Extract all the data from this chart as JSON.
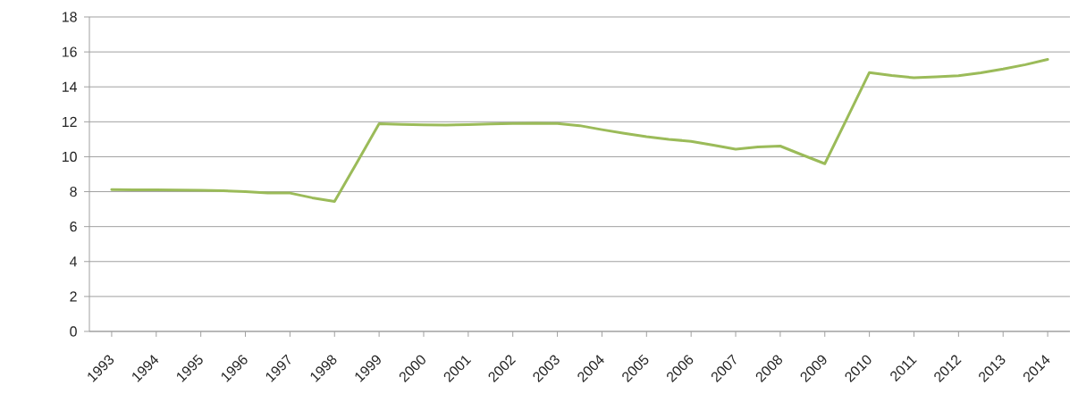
{
  "chart_data": {
    "type": "line",
    "x": [
      1993,
      1993.5,
      1994,
      1994.5,
      1995,
      1995.5,
      1996,
      1996.5,
      1997,
      1997.5,
      1998,
      1998.5,
      1999,
      1999.5,
      2000,
      2000.5,
      2001,
      2001.5,
      2002,
      2002.5,
      2003,
      2003.5,
      2004,
      2004.5,
      2005,
      2005.5,
      2006,
      2006.5,
      2007,
      2007.5,
      2008,
      2008.5,
      2009,
      2009.5,
      2010,
      2010.5,
      2011,
      2011.5,
      2012,
      2012.5,
      2013,
      2013.5,
      2014
    ],
    "values": [
      8.12,
      8.1,
      8.1,
      8.09,
      8.08,
      8.05,
      8.0,
      7.92,
      7.92,
      7.65,
      7.44,
      9.65,
      11.89,
      11.85,
      11.82,
      11.81,
      11.84,
      11.88,
      11.9,
      11.92,
      11.9,
      11.78,
      11.55,
      11.34,
      11.15,
      11.0,
      10.88,
      10.66,
      10.43,
      10.56,
      10.61,
      10.1,
      9.6,
      12.2,
      14.82,
      14.65,
      14.52,
      14.58,
      14.64,
      14.8,
      15.02,
      15.27,
      15.57
    ],
    "color": "#9bbb59",
    "xlim": [
      1992.5,
      2014.5
    ],
    "xticks": [
      1993,
      1994,
      1995,
      1996,
      1997,
      1998,
      1999,
      2000,
      2001,
      2002,
      2003,
      2004,
      2005,
      2006,
      2007,
      2008,
      2009,
      2010,
      2011,
      2012,
      2013,
      2014
    ],
    "ylim": [
      0,
      18
    ],
    "yticks": [
      0,
      2,
      4,
      6,
      8,
      10,
      12,
      14,
      16,
      18
    ],
    "grid": "y",
    "line_style": "solid"
  }
}
